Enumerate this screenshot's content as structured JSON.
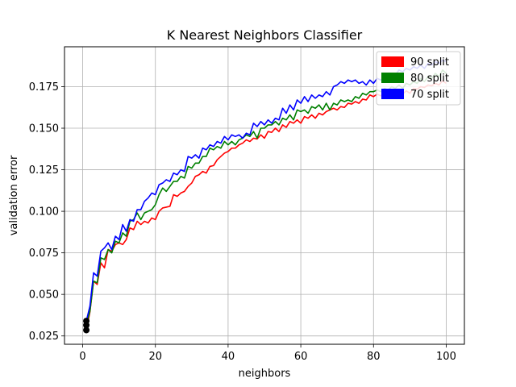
{
  "chart_data": {
    "type": "line",
    "title": "K Nearest Neighbors Classifier",
    "xlabel": "neighbors",
    "ylabel": "validation error",
    "xlim": [
      -5,
      105
    ],
    "ylim": [
      0.02,
      0.199
    ],
    "xticks": [
      0,
      20,
      40,
      60,
      80,
      100
    ],
    "yticks": [
      0.025,
      0.05,
      0.075,
      0.1,
      0.125,
      0.15,
      0.175
    ],
    "ytick_labels": [
      "0.025",
      "0.050",
      "0.075",
      "0.100",
      "0.125",
      "0.150",
      "0.175"
    ],
    "grid": true,
    "legend_position": "top-right",
    "start_markers": [
      {
        "x": 1,
        "y": 0.0285
      },
      {
        "x": 1,
        "y": 0.0315
      },
      {
        "x": 1,
        "y": 0.034
      }
    ],
    "series": [
      {
        "name": "90 split",
        "color": "#ff0000",
        "x": [
          1,
          2,
          3,
          4,
          5,
          6,
          7,
          8,
          9,
          10,
          11,
          12,
          13,
          14,
          15,
          16,
          17,
          18,
          19,
          20,
          21,
          22,
          23,
          24,
          25,
          26,
          27,
          28,
          29,
          30,
          31,
          32,
          33,
          34,
          35,
          36,
          37,
          38,
          39,
          40,
          41,
          42,
          43,
          44,
          45,
          46,
          47,
          48,
          49,
          50,
          51,
          52,
          53,
          54,
          55,
          56,
          57,
          58,
          59,
          60,
          61,
          62,
          63,
          64,
          65,
          66,
          67,
          68,
          69,
          70,
          71,
          72,
          73,
          74,
          75,
          76,
          77,
          78,
          79,
          80,
          81,
          82,
          83,
          84,
          85,
          86,
          87,
          88,
          89,
          90,
          91,
          92,
          93,
          94,
          95,
          96,
          97,
          98,
          99,
          100
        ],
        "y": [
          0.0285,
          0.0395,
          0.058,
          0.056,
          0.069,
          0.066,
          0.077,
          0.076,
          0.08,
          0.081,
          0.08,
          0.083,
          0.09,
          0.089,
          0.094,
          0.092,
          0.094,
          0.093,
          0.096,
          0.095,
          0.1,
          0.102,
          0.1025,
          0.103,
          0.11,
          0.109,
          0.111,
          0.112,
          0.115,
          0.117,
          0.121,
          0.122,
          0.124,
          0.123,
          0.127,
          0.1275,
          0.131,
          0.133,
          0.135,
          0.136,
          0.138,
          0.138,
          0.14,
          0.141,
          0.143,
          0.142,
          0.144,
          0.1435,
          0.146,
          0.144,
          0.148,
          0.1475,
          0.15,
          0.148,
          0.152,
          0.1505,
          0.154,
          0.153,
          0.155,
          0.153,
          0.157,
          0.156,
          0.158,
          0.156,
          0.159,
          0.158,
          0.16,
          0.161,
          0.162,
          0.161,
          0.163,
          0.1625,
          0.165,
          0.1645,
          0.166,
          0.165,
          0.1675,
          0.167,
          0.17,
          0.169,
          0.1705,
          0.1695,
          0.171,
          0.17,
          0.172,
          0.1715,
          0.1725,
          0.1705,
          0.1725,
          0.171,
          0.174,
          0.1735,
          0.175,
          0.1745,
          0.176,
          0.1755,
          0.177,
          0.176,
          0.1785,
          0.177
        ]
      },
      {
        "name": "80 split",
        "color": "#008000",
        "x": [
          1,
          2,
          3,
          4,
          5,
          6,
          7,
          8,
          9,
          10,
          11,
          12,
          13,
          14,
          15,
          16,
          17,
          18,
          19,
          20,
          21,
          22,
          23,
          24,
          25,
          26,
          27,
          28,
          29,
          30,
          31,
          32,
          33,
          34,
          35,
          36,
          37,
          38,
          39,
          40,
          41,
          42,
          43,
          44,
          45,
          46,
          47,
          48,
          49,
          50,
          51,
          52,
          53,
          54,
          55,
          56,
          57,
          58,
          59,
          60,
          61,
          62,
          63,
          64,
          65,
          66,
          67,
          68,
          69,
          70,
          71,
          72,
          73,
          74,
          75,
          76,
          77,
          78,
          79,
          80,
          81,
          82,
          83,
          84,
          85,
          86,
          87,
          88,
          89,
          90,
          91,
          92,
          93,
          94,
          95,
          96,
          97,
          98,
          99,
          100
        ],
        "y": [
          0.0315,
          0.04,
          0.058,
          0.057,
          0.072,
          0.071,
          0.077,
          0.075,
          0.082,
          0.081,
          0.087,
          0.085,
          0.094,
          0.095,
          0.099,
          0.095,
          0.099,
          0.1,
          0.101,
          0.104,
          0.11,
          0.114,
          0.112,
          0.115,
          0.118,
          0.118,
          0.121,
          0.12,
          0.127,
          0.126,
          0.129,
          0.129,
          0.133,
          0.133,
          0.138,
          0.137,
          0.139,
          0.138,
          0.142,
          0.14,
          0.142,
          0.14,
          0.143,
          0.144,
          0.146,
          0.145,
          0.148,
          0.144,
          0.15,
          0.15,
          0.152,
          0.152,
          0.154,
          0.152,
          0.156,
          0.155,
          0.158,
          0.155,
          0.161,
          0.16,
          0.161,
          0.159,
          0.163,
          0.162,
          0.164,
          0.161,
          0.165,
          0.161,
          0.165,
          0.164,
          0.167,
          0.166,
          0.167,
          0.166,
          0.169,
          0.168,
          0.171,
          0.17,
          0.172,
          0.172,
          0.173,
          0.172,
          0.174,
          0.173,
          0.175,
          0.174,
          0.176,
          0.174,
          0.177,
          0.176,
          0.178,
          0.177,
          0.18,
          0.178,
          0.181,
          0.18,
          0.183,
          0.181,
          0.185,
          0.183
        ]
      },
      {
        "name": "70 split",
        "color": "#0000ff",
        "x": [
          1,
          2,
          3,
          4,
          5,
          6,
          7,
          8,
          9,
          10,
          11,
          12,
          13,
          14,
          15,
          16,
          17,
          18,
          19,
          20,
          21,
          22,
          23,
          24,
          25,
          26,
          27,
          28,
          29,
          30,
          31,
          32,
          33,
          34,
          35,
          36,
          37,
          38,
          39,
          40,
          41,
          42,
          43,
          44,
          45,
          46,
          47,
          48,
          49,
          50,
          51,
          52,
          53,
          54,
          55,
          56,
          57,
          58,
          59,
          60,
          61,
          62,
          63,
          64,
          65,
          66,
          67,
          68,
          69,
          70,
          71,
          72,
          73,
          74,
          75,
          76,
          77,
          78,
          79,
          80,
          81,
          82,
          83,
          84,
          85,
          86,
          87,
          88,
          89,
          90,
          91,
          92,
          93,
          94,
          95,
          96,
          97,
          98,
          99,
          100
        ],
        "y": [
          0.034,
          0.043,
          0.063,
          0.061,
          0.076,
          0.078,
          0.081,
          0.077,
          0.085,
          0.083,
          0.092,
          0.088,
          0.095,
          0.094,
          0.101,
          0.101,
          0.106,
          0.108,
          0.111,
          0.11,
          0.116,
          0.117,
          0.119,
          0.118,
          0.123,
          0.122,
          0.125,
          0.124,
          0.133,
          0.132,
          0.134,
          0.132,
          0.138,
          0.137,
          0.14,
          0.139,
          0.142,
          0.141,
          0.145,
          0.143,
          0.146,
          0.145,
          0.146,
          0.144,
          0.147,
          0.146,
          0.153,
          0.151,
          0.154,
          0.152,
          0.155,
          0.153,
          0.156,
          0.155,
          0.162,
          0.159,
          0.164,
          0.161,
          0.167,
          0.165,
          0.169,
          0.166,
          0.17,
          0.168,
          0.17,
          0.169,
          0.172,
          0.17,
          0.175,
          0.176,
          0.178,
          0.177,
          0.179,
          0.178,
          0.179,
          0.177,
          0.178,
          0.176,
          0.179,
          0.177,
          0.18,
          0.179,
          0.181,
          0.18,
          0.183,
          0.182,
          0.185,
          0.184,
          0.186,
          0.185,
          0.187,
          0.186,
          0.188,
          0.186,
          0.189,
          0.188,
          0.19,
          0.189,
          0.191,
          0.19
        ]
      }
    ]
  }
}
